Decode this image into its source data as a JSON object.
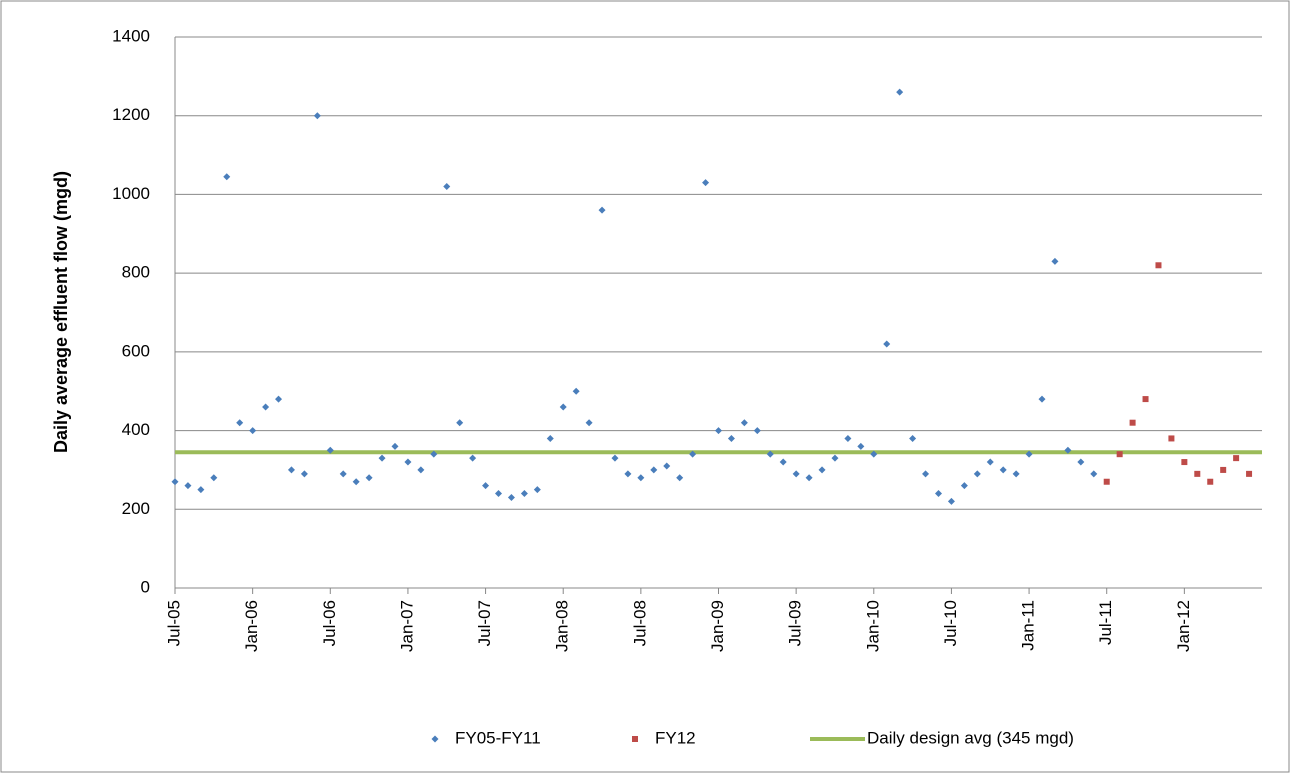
{
  "chart_data": {
    "type": "scatter",
    "y_label": "Daily average effluent flow (mgd)",
    "xlim": [
      "2005-07",
      "2012-07"
    ],
    "xticks": [
      {
        "value": "2005-07",
        "label": "Jul-05"
      },
      {
        "value": "2006-01",
        "label": "Jan-06"
      },
      {
        "value": "2006-07",
        "label": "Jul-06"
      },
      {
        "value": "2007-01",
        "label": "Jan-07"
      },
      {
        "value": "2007-07",
        "label": "Jul-07"
      },
      {
        "value": "2008-01",
        "label": "Jan-08"
      },
      {
        "value": "2008-07",
        "label": "Jul-08"
      },
      {
        "value": "2009-01",
        "label": "Jan-09"
      },
      {
        "value": "2009-07",
        "label": "Jul-09"
      },
      {
        "value": "2010-01",
        "label": "Jan-10"
      },
      {
        "value": "2010-07",
        "label": "Jul-10"
      },
      {
        "value": "2011-01",
        "label": "Jan-11"
      },
      {
        "value": "2011-07",
        "label": "Jul-11"
      },
      {
        "value": "2012-01",
        "label": "Jan-12"
      }
    ],
    "ylim": [
      0,
      1400
    ],
    "yticks": [
      0,
      200,
      400,
      600,
      800,
      1000,
      1200,
      1400
    ],
    "grid": true,
    "legend": "bottom",
    "series": [
      {
        "name": "FY05-FY11",
        "color": "#4a7ebb",
        "marker": "diamond",
        "x": [
          "2005-07",
          "2005-08",
          "2005-09",
          "2005-10",
          "2005-11",
          "2005-12",
          "2006-01",
          "2006-02",
          "2006-03",
          "2006-04",
          "2006-05",
          "2006-06",
          "2006-07",
          "2006-08",
          "2006-09",
          "2006-10",
          "2006-11",
          "2006-12",
          "2007-01",
          "2007-02",
          "2007-03",
          "2007-04",
          "2007-05",
          "2007-06",
          "2007-07",
          "2007-08",
          "2007-09",
          "2007-10",
          "2007-11",
          "2007-12",
          "2008-01",
          "2008-02",
          "2008-03",
          "2008-04",
          "2008-05",
          "2008-06",
          "2008-07",
          "2008-08",
          "2008-09",
          "2008-10",
          "2008-11",
          "2008-12",
          "2009-01",
          "2009-02",
          "2009-03",
          "2009-04",
          "2009-05",
          "2009-06",
          "2009-07",
          "2009-08",
          "2009-09",
          "2009-10",
          "2009-11",
          "2009-12",
          "2010-01",
          "2010-02",
          "2010-03",
          "2010-04",
          "2010-05",
          "2010-06",
          "2010-07",
          "2010-08",
          "2010-09",
          "2010-10",
          "2010-11",
          "2010-12",
          "2011-01",
          "2011-02",
          "2011-03",
          "2011-04",
          "2011-05",
          "2011-06"
        ],
        "values": [
          270,
          260,
          250,
          280,
          1045,
          420,
          400,
          460,
          480,
          300,
          290,
          1200,
          350,
          290,
          270,
          280,
          330,
          360,
          320,
          300,
          340,
          1020,
          420,
          330,
          260,
          240,
          230,
          240,
          250,
          380,
          460,
          500,
          420,
          960,
          330,
          290,
          280,
          300,
          310,
          280,
          340,
          1030,
          400,
          380,
          420,
          400,
          340,
          320,
          290,
          280,
          300,
          330,
          380,
          360,
          340,
          620,
          1260,
          380,
          290,
          240,
          220,
          260,
          290,
          320,
          300,
          290,
          340,
          480,
          830,
          350,
          320,
          290
        ]
      },
      {
        "name": "FY12",
        "color": "#be4b48",
        "marker": "square",
        "x": [
          "2011-07",
          "2011-08",
          "2011-09",
          "2011-10",
          "2011-11",
          "2011-12",
          "2012-01",
          "2012-02",
          "2012-03",
          "2012-04",
          "2012-05",
          "2012-06"
        ],
        "values": [
          270,
          340,
          420,
          480,
          820,
          380,
          320,
          290,
          270,
          300,
          330,
          290
        ]
      }
    ],
    "reference_line": {
      "name": "Daily design avg (345 mgd)",
      "value": 345,
      "color": "#9bbb59"
    }
  }
}
